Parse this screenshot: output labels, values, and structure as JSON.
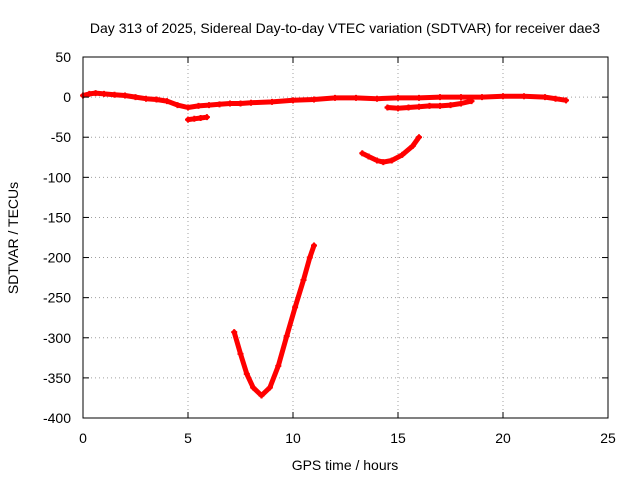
{
  "chart_data": {
    "type": "scatter",
    "title": "Day 313 of 2025, Sidereal Day-to-day VTEC variation (SDTVAR) for receiver dae3",
    "xlabel": "GPS time / hours",
    "ylabel": "SDTVAR / TECUs",
    "xlim": [
      0,
      25
    ],
    "ylim": [
      -400,
      50
    ],
    "xticks": [
      0,
      5,
      10,
      15,
      20,
      25
    ],
    "yticks": [
      50,
      0,
      -50,
      -100,
      -150,
      -200,
      -250,
      -300,
      -350,
      -400
    ],
    "grid": true,
    "legend": "none",
    "color": "#ff0000",
    "series": [
      {
        "name": "main-trace",
        "points": [
          [
            0,
            2
          ],
          [
            0.3,
            4
          ],
          [
            0.6,
            5
          ],
          [
            1,
            4
          ],
          [
            1.5,
            3
          ],
          [
            2,
            2
          ],
          [
            2.5,
            0
          ],
          [
            3,
            -2
          ],
          [
            3.5,
            -3
          ],
          [
            4,
            -5
          ],
          [
            4.5,
            -10
          ],
          [
            5,
            -13
          ],
          [
            5.5,
            -11
          ],
          [
            6,
            -10
          ],
          [
            6.5,
            -9
          ],
          [
            7,
            -8
          ],
          [
            7.5,
            -8
          ],
          [
            8,
            -7
          ],
          [
            9,
            -6
          ],
          [
            10,
            -4
          ],
          [
            11,
            -3
          ],
          [
            12,
            -1
          ],
          [
            13,
            -1
          ],
          [
            14,
            -2
          ],
          [
            15,
            -1
          ],
          [
            16,
            -1
          ],
          [
            17,
            0
          ],
          [
            18,
            0
          ],
          [
            19,
            0
          ],
          [
            20,
            1
          ],
          [
            21,
            1
          ],
          [
            22,
            0
          ],
          [
            22.5,
            -2
          ],
          [
            23,
            -4
          ]
        ]
      },
      {
        "name": "short-segment",
        "points": [
          [
            5.0,
            -28
          ],
          [
            5.3,
            -27
          ],
          [
            5.6,
            -26
          ],
          [
            5.9,
            -25
          ]
        ]
      },
      {
        "name": "lower-branch",
        "points": [
          [
            14.5,
            -13
          ],
          [
            15,
            -14
          ],
          [
            15.5,
            -13
          ],
          [
            16,
            -12
          ],
          [
            16.5,
            -11
          ],
          [
            17,
            -11
          ],
          [
            17.5,
            -10
          ],
          [
            18,
            -8
          ],
          [
            18.5,
            -5
          ]
        ]
      },
      {
        "name": "mid-curve",
        "points": [
          [
            13.3,
            -70
          ],
          [
            13.6,
            -74
          ],
          [
            14,
            -79
          ],
          [
            14.3,
            -81
          ],
          [
            14.7,
            -79
          ],
          [
            15.2,
            -72
          ],
          [
            15.7,
            -61
          ],
          [
            16,
            -50
          ]
        ]
      },
      {
        "name": "deep-curve",
        "points": [
          [
            7.2,
            -293
          ],
          [
            7.5,
            -320
          ],
          [
            7.8,
            -345
          ],
          [
            8.1,
            -362
          ],
          [
            8.5,
            -372
          ],
          [
            8.9,
            -362
          ],
          [
            9.3,
            -335
          ],
          [
            9.7,
            -298
          ],
          [
            10.1,
            -262
          ],
          [
            10.5,
            -228
          ],
          [
            10.8,
            -200
          ],
          [
            11,
            -185
          ]
        ]
      }
    ]
  }
}
